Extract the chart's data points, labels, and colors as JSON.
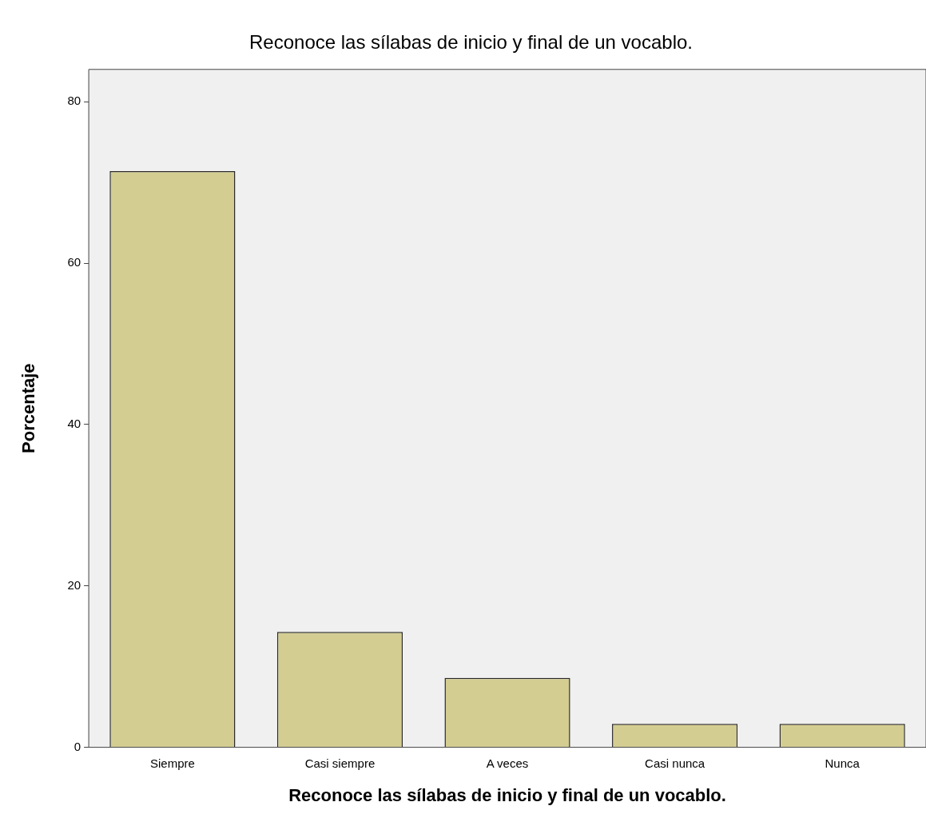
{
  "chart_data": {
    "type": "bar",
    "title": "Reconoce las sílabas de inicio y final de un vocablo.",
    "xlabel": "Reconoce las sílabas de inicio y final de un vocablo.",
    "ylabel": "Porcentaje",
    "categories": [
      "Siempre",
      "Casi siempre",
      "A veces",
      "Casi nunca",
      "Nunca"
    ],
    "values": [
      71.4,
      14.3,
      8.6,
      2.9,
      2.9
    ],
    "color": "#d3cd92",
    "ylim": [
      0,
      84
    ],
    "yticks": [
      0,
      20,
      40,
      60,
      80
    ],
    "grid": false,
    "legend": false
  }
}
